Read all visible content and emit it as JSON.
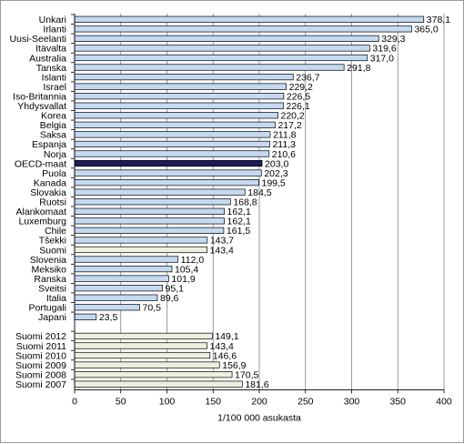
{
  "chart_data": {
    "type": "bar",
    "orientation": "horizontal",
    "xlabel": "1/100 000 asukasta",
    "xlim": [
      0,
      400
    ],
    "xticks": [
      0,
      50,
      100,
      150,
      200,
      250,
      300,
      350,
      400
    ],
    "grid": "vertical",
    "categories": [
      "Unkari",
      "Irlanti",
      "Uusi-Seelanti",
      "Itävalta",
      "Australia",
      "Tanska",
      "Islanti",
      "Israel",
      "Iso-Britannia",
      "Yhdysvallat",
      "Korea",
      "Belgia",
      "Saksa",
      "Espanja",
      "Norja",
      "OECD-maat",
      "Puola",
      "Kanada",
      "Slovakia",
      "Ruotsi",
      "Alankomaat",
      "Luxemburg",
      "Chile",
      "Tšekki",
      "Suomi",
      "Slovenia",
      "Meksiko",
      "Ranska",
      "Sveitsi",
      "Italia",
      "Portugali",
      "Japani",
      "Suomi 2012",
      "Suomi 2011",
      "Suomi 2010",
      "Suomi 2009",
      "Suomi 2008",
      "Suomi 2007"
    ],
    "values": [
      378.1,
      365.0,
      329.3,
      319.6,
      317.0,
      291.8,
      236.7,
      229.2,
      226.5,
      226.1,
      220.2,
      217.2,
      211.8,
      211.3,
      210.6,
      203.0,
      202.3,
      199.5,
      184.5,
      168.8,
      162.1,
      162.1,
      161.5,
      143.7,
      143.4,
      112.0,
      105.4,
      101.9,
      95.1,
      89.6,
      70.5,
      23.5,
      149.1,
      143.4,
      146.6,
      156.9,
      170.5,
      181.6
    ],
    "value_labels": [
      "378,1",
      "365,0",
      "329,3",
      "319,6",
      "317,0",
      "291,8",
      "236,7",
      "229,2",
      "226,5",
      "226,1",
      "220,2",
      "217,2",
      "211,8",
      "211,3",
      "210,6",
      "203,0",
      "202,3",
      "199,5",
      "184,5",
      "168,8",
      "162,1",
      "162,1",
      "161,5",
      "143,7",
      "143,4",
      "112,0",
      "105,4",
      "101,9",
      "95,1",
      "89,6",
      "70,5",
      "23,5",
      "149,1",
      "143,4",
      "146,6",
      "156,9",
      "170,5",
      "181,6"
    ],
    "colors": {
      "default": "#c5d9f1",
      "oecd": "#1f1a5a",
      "suomi": "#ebf1de",
      "bar_border": "#000000",
      "grid": "#808080"
    },
    "highlight": {
      "OECD-maat": "oecd",
      "Suomi": "suomi",
      "Suomi 2012": "suomi",
      "Suomi 2011": "suomi",
      "Suomi 2010": "suomi",
      "Suomi 2009": "suomi",
      "Suomi 2008": "suomi",
      "Suomi 2007": "suomi"
    },
    "group_gap_after": "Japani"
  }
}
